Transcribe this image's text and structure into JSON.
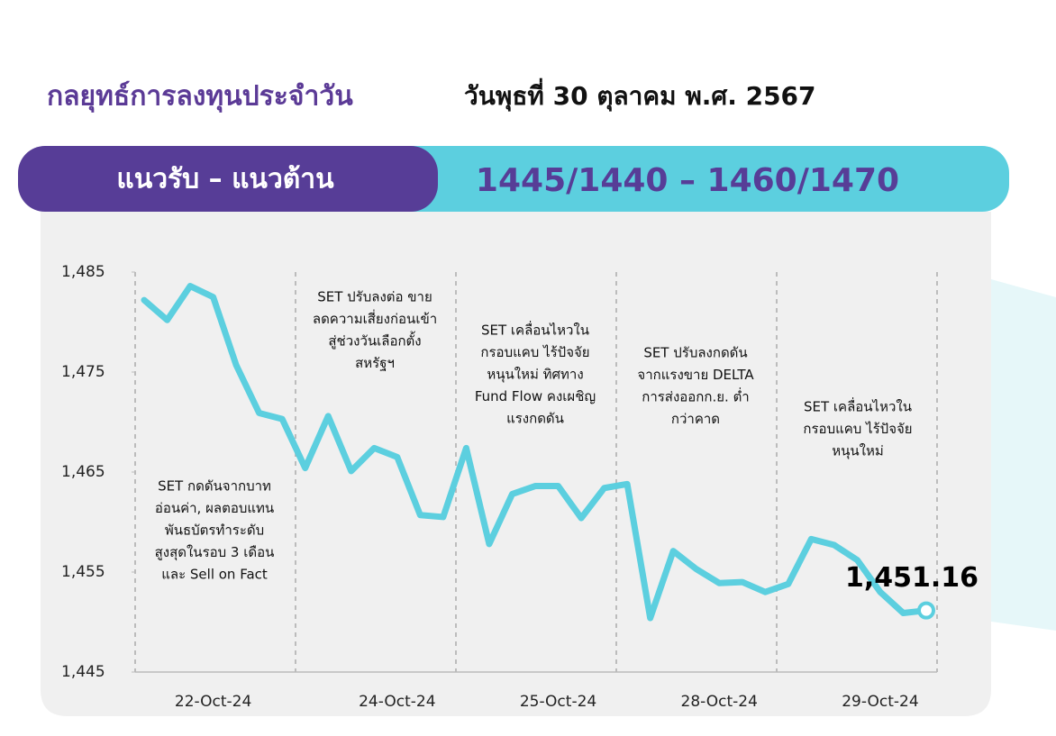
{
  "header": {
    "title": "กลยุทธ์การลงทุนประจำวัน",
    "date": "วันพุธที่ 30 ตุลาคม พ.ศ. 2567"
  },
  "range_bar": {
    "label": "แนวรับ – แนวต้าน",
    "value": "1445/1440 – 1460/1470"
  },
  "chart_data": {
    "type": "line",
    "categories": [
      null,
      null,
      null,
      "22-Oct-24",
      null,
      null,
      null,
      null,
      null,
      null,
      null,
      "24-Oct-24",
      null,
      null,
      null,
      null,
      null,
      null,
      "25-Oct-24",
      null,
      null,
      null,
      null,
      null,
      null,
      "28-Oct-24",
      null,
      null,
      null,
      null,
      null,
      null,
      "29-Oct-24",
      null,
      null
    ],
    "series": [
      {
        "name": "SET",
        "color": "#5ccfdf",
        "values": [
          1482.2,
          1480.2,
          1483.6,
          1482.5,
          1475.7,
          1470.9,
          1470.3,
          1465.4,
          1470.6,
          1465.1,
          1467.4,
          1466.5,
          1460.7,
          1460.5,
          1467.4,
          1457.8,
          1462.8,
          1463.6,
          1463.6,
          1460.4,
          1463.4,
          1463.8,
          1450.4,
          1457.1,
          1455.3,
          1453.9,
          1454.0,
          1453.0,
          1453.8,
          1458.3,
          1457.7,
          1456.2,
          1453.0,
          1450.9,
          1451.16
        ],
        "value_labels": [
          null,
          null,
          null,
          null,
          null,
          null,
          null,
          null,
          null,
          null,
          null,
          null,
          null,
          null,
          null,
          null,
          null,
          null,
          null,
          null,
          null,
          null,
          null,
          null,
          null,
          null,
          null,
          null,
          null,
          null,
          null,
          null,
          null,
          null,
          "1,451.16"
        ]
      }
    ],
    "ylim": [
      1445,
      1485
    ],
    "yticks": [
      {
        "value": 1445,
        "label": "1,445"
      },
      {
        "value": 1455,
        "label": "1,455"
      },
      {
        "value": 1465,
        "label": "1,465"
      },
      {
        "value": 1475,
        "label": "1,475"
      },
      {
        "value": 1485,
        "label": "1,485"
      }
    ],
    "annotations": [
      [
        "SET กดดันจากบาท",
        "อ่อนค่า, ผลตอบแทน",
        "พันธบัตรทำระดับ",
        "สูงสุดในรอบ 3 เดือน",
        "และ Sell on Fact"
      ],
      [
        "SET ปรับลงต่อ ขาย",
        "ลดความเสี่ยงก่อนเข้า",
        "สู่ช่วงวันเลือกตั้ง",
        "สหรัฐฯ"
      ],
      [
        "SET เคลื่อนไหวใน",
        "กรอบแคบ ไร้ปัจจัย",
        "หนุนใหม่ ทิศทาง",
        "Fund Flow คงเผชิญ",
        "แรงกดดัน"
      ],
      [
        "SET ปรับลงกดดัน",
        "จากแรงขาย DELTA",
        "การส่งออกก.ย. ต่ำ",
        "กว่าคาด"
      ],
      [
        "SET เคลื่อนไหวใน",
        "กรอบแคบ ไร้ปัจจัย",
        "หนุนใหม่"
      ]
    ]
  }
}
